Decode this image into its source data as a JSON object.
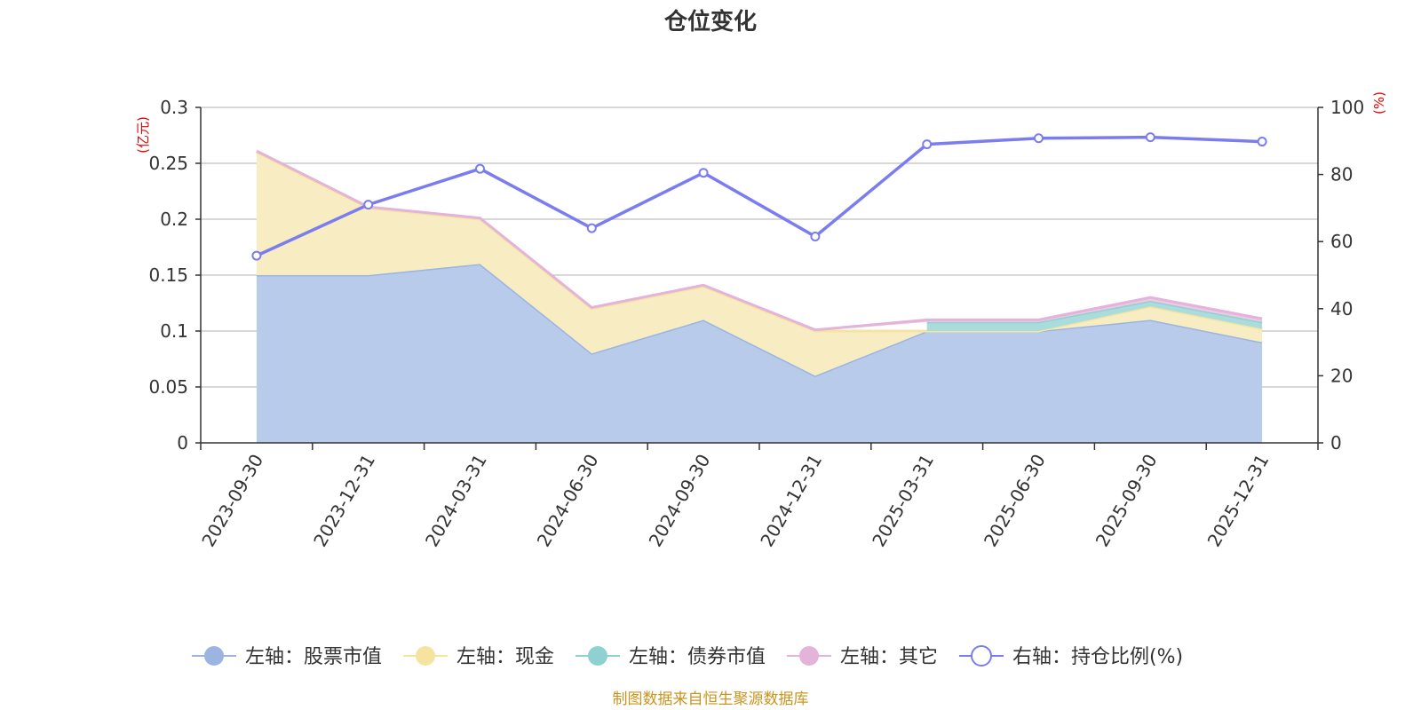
{
  "chart_data": {
    "type": "area",
    "title": "仓位变化",
    "categories": [
      "2023-09-30",
      "2023-12-31",
      "2024-03-31",
      "2024-06-30",
      "2024-09-30",
      "2024-12-31",
      "2025-03-31",
      "2025-06-30",
      "2025-09-30",
      "2025-12-31"
    ],
    "left_axis": {
      "unit": "(亿元)",
      "ylim": [
        0,
        0.3
      ],
      "ticks": [
        "0",
        "0.05",
        "0.1",
        "0.15",
        "0.2",
        "0.25",
        "0.3"
      ]
    },
    "right_axis": {
      "unit": "(%)",
      "ylim": [
        0,
        100
      ],
      "ticks": [
        "0",
        "20",
        "40",
        "60",
        "80",
        "100"
      ]
    },
    "series": [
      {
        "name": "左轴：股票市值",
        "axis": "left",
        "color": "#9bb5e0",
        "fill": "#b8cbea",
        "values": [
          0.15,
          0.15,
          0.16,
          0.08,
          0.11,
          0.06,
          0.1,
          0.1,
          0.11,
          0.09
        ]
      },
      {
        "name": "左轴：现金",
        "axis": "left",
        "color": "#f5e4a0",
        "fill": "#f8ecc2",
        "values": [
          0.11,
          0.06,
          0.04,
          0.04,
          0.03,
          0.04,
          0.0,
          0.0,
          0.012,
          0.012
        ]
      },
      {
        "name": "左轴：债券市值",
        "axis": "left",
        "color": "#8fd1d1",
        "fill": "#aadcdc",
        "values": [
          null,
          null,
          null,
          null,
          null,
          null,
          0.008,
          0.008,
          0.005,
          0.006
        ]
      },
      {
        "name": "左轴：其它",
        "axis": "left",
        "color": "#e3b3d9",
        "fill": "#efc8e6",
        "values": [
          0.001,
          0.001,
          0.001,
          0.001,
          0.001,
          0.001,
          0.002,
          0.002,
          0.003,
          0.003
        ]
      },
      {
        "name": "右轴：持仓比例(%)",
        "axis": "right",
        "color": "#7b7cf0",
        "values": [
          55.8,
          71.0,
          81.7,
          64.0,
          80.5,
          61.5,
          89.0,
          90.8,
          91.1,
          89.8
        ]
      }
    ]
  },
  "footer": {
    "source": "制图数据来自恒生聚源数据库"
  }
}
